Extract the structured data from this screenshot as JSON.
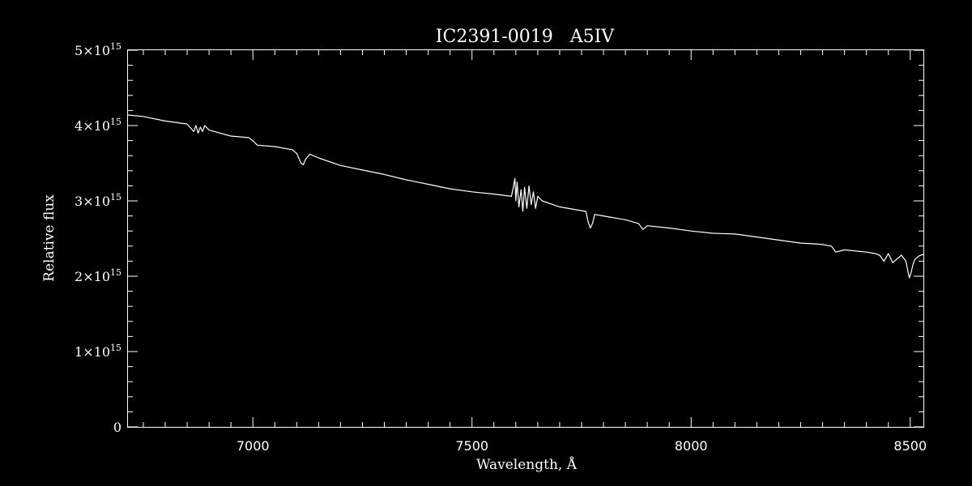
{
  "chart_data": {
    "type": "line",
    "title": "IC2391-0019   A5IV",
    "xlabel": "Wavelength, Å",
    "ylabel": "Relative flux",
    "xlim": [
      6715,
      8530
    ],
    "ylim": [
      0,
      5000000000000000.0
    ],
    "x_ticks": [
      7000,
      7500,
      8000,
      8500
    ],
    "x_tick_labels": [
      "7000",
      "7500",
      "8000",
      "8500"
    ],
    "y_ticks": [
      0,
      1000000000000000.0,
      2000000000000000.0,
      3000000000000000.0,
      4000000000000000.0,
      5000000000000000.0
    ],
    "y_tick_labels": [
      {
        "mant": "0",
        "exp": ""
      },
      {
        "mant": "1×10",
        "exp": "15"
      },
      {
        "mant": "2×10",
        "exp": "15"
      },
      {
        "mant": "3×10",
        "exp": "15"
      },
      {
        "mant": "4×10",
        "exp": "15"
      },
      {
        "mant": "5×10",
        "exp": "15"
      }
    ],
    "grid": false,
    "colors": {
      "background": "#000000",
      "foreground": "#ffffff"
    },
    "series": [
      {
        "x": [
          6715,
          6750,
          6800,
          6850,
          6865,
          6870,
          6875,
          6880,
          6885,
          6890,
          6900,
          6950,
          6990,
          7000,
          7010,
          7050,
          7090,
          7100,
          7110,
          7115,
          7120,
          7130,
          7150,
          7200,
          7250,
          7300,
          7350,
          7400,
          7450,
          7500,
          7550,
          7590,
          7595,
          7598,
          7600,
          7603,
          7607,
          7612,
          7616,
          7620,
          7625,
          7630,
          7635,
          7640,
          7645,
          7650,
          7660,
          7700,
          7750,
          7760,
          7765,
          7770,
          7775,
          7780,
          7800,
          7850,
          7880,
          7890,
          7900,
          7950,
          8000,
          8050,
          8100,
          8150,
          8200,
          8250,
          8280,
          8300,
          8320,
          8330,
          8350,
          8400,
          8420,
          8430,
          8440,
          8445,
          8450,
          8460,
          8480,
          8490,
          8495,
          8498,
          8502,
          8506,
          8510,
          8520,
          8530
        ],
        "y": [
          4140000000000000.0,
          4120000000000000.0,
          4060000000000000.0,
          4020000000000000.0,
          3920000000000000.0,
          4000000000000000.0,
          3900000000000000.0,
          3980000000000000.0,
          3920000000000000.0,
          4000000000000000.0,
          3940000000000000.0,
          3860000000000000.0,
          3840000000000000.0,
          3800000000000000.0,
          3740000000000000.0,
          3720000000000000.0,
          3680000000000000.0,
          3630000000000000.0,
          3500000000000000.0,
          3480000000000000.0,
          3550000000000000.0,
          3620000000000000.0,
          3570000000000000.0,
          3470000000000000.0,
          3410000000000000.0,
          3350000000000000.0,
          3280000000000000.0,
          3220000000000000.0,
          3160000000000000.0,
          3120000000000000.0,
          3090000000000000.0,
          3060000000000000.0,
          3200000000000000.0,
          3300000000000000.0,
          3000000000000000.0,
          3250000000000000.0,
          2920000000000000.0,
          3150000000000000.0,
          2860000000000000.0,
          3180000000000000.0,
          2900000000000000.0,
          3200000000000000.0,
          2950000000000000.0,
          3120000000000000.0,
          2900000000000000.0,
          3060000000000000.0,
          3000000000000000.0,
          2920000000000000.0,
          2870000000000000.0,
          2860000000000000.0,
          2720000000000000.0,
          2640000000000000.0,
          2700000000000000.0,
          2820000000000000.0,
          2800000000000000.0,
          2750000000000000.0,
          2700000000000000.0,
          2620000000000000.0,
          2670000000000000.0,
          2640000000000000.0,
          2600000000000000.0,
          2570000000000000.0,
          2560000000000000.0,
          2520000000000000.0,
          2480000000000000.0,
          2440000000000000.0,
          2430000000000000.0,
          2420000000000000.0,
          2400000000000000.0,
          2320000000000000.0,
          2350000000000000.0,
          2320000000000000.0,
          2300000000000000.0,
          2280000000000000.0,
          2200000000000000.0,
          2250000000000000.0,
          2300000000000000.0,
          2180000000000000.0,
          2280000000000000.0,
          2200000000000000.0,
          2050000000000000.0,
          1980000000000000.0,
          2050000000000000.0,
          2150000000000000.0,
          2220000000000000.0,
          2270000000000000.0,
          2290000000000000.0
        ]
      }
    ]
  }
}
